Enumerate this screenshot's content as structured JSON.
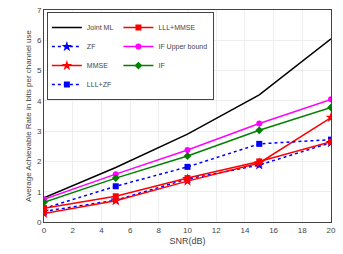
{
  "chart_data": {
    "type": "line",
    "xlabel": "SNR(dB)",
    "ylabel": "Average Achievable Rate in bits per channel use",
    "x": [
      0,
      5,
      10,
      15,
      20
    ],
    "series": [
      {
        "name": "Joint ML",
        "color": "black",
        "line_style": "solid",
        "values": [
          0.8,
          1.8,
          2.9,
          4.2,
          6.05
        ]
      },
      {
        "name": "ZF",
        "color": "blue",
        "line_style": "dotted",
        "marker": "star",
        "values": [
          0.35,
          0.72,
          1.42,
          1.88,
          2.62
        ]
      },
      {
        "name": "MMSE",
        "color": "red",
        "line_style": "solid",
        "marker": "star",
        "values": [
          0.28,
          0.7,
          1.35,
          1.95,
          3.45
        ]
      },
      {
        "name": "LLL+ZF",
        "color": "blue",
        "line_style": "dotted",
        "marker": "square",
        "values": [
          0.45,
          1.18,
          1.82,
          2.58,
          2.72
        ]
      },
      {
        "name": "LLL+MMSE",
        "color": "red",
        "line_style": "solid",
        "marker": "square",
        "values": [
          0.45,
          0.85,
          1.45,
          2.0,
          2.65
        ]
      },
      {
        "name": "IF Upper bound",
        "color": "magenta",
        "line_style": "solid",
        "marker": "circle",
        "values": [
          0.75,
          1.58,
          2.38,
          3.25,
          4.05
        ]
      },
      {
        "name": "IF",
        "color": "green",
        "line_style": "solid",
        "marker": "diamond",
        "values": [
          0.65,
          1.45,
          2.18,
          3.03,
          3.78
        ]
      }
    ],
    "xlim": [
      0,
      20
    ],
    "ylim": [
      0,
      7
    ],
    "xticks": [
      0,
      2,
      4,
      6,
      8,
      10,
      12,
      14,
      16,
      18,
      20
    ],
    "yticks": [
      0,
      1,
      2,
      3,
      4,
      5,
      6,
      7
    ],
    "grid": true,
    "legend": "upper left"
  }
}
